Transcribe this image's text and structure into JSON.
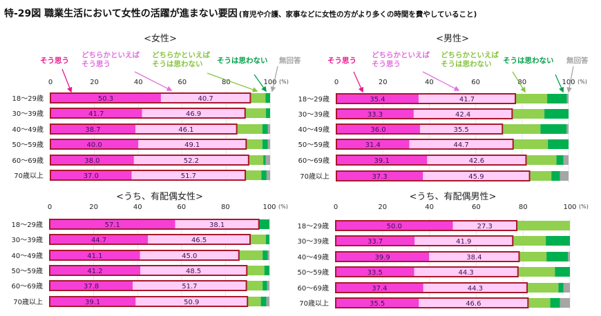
{
  "title": "特-29図 職業生活において女性の活躍が進まない要因",
  "subtitle": "(育児や介護、家事などに女性の方がより多くの時間を費やしていること)",
  "legend": [
    {
      "lines": [
        "そう思う"
      ],
      "color": "#e8168c"
    },
    {
      "lines": [
        "どちらかといえば",
        "そう思う"
      ],
      "color": "#e26fe0"
    },
    {
      "lines": [
        "どちらかといえば",
        "そうは思わない"
      ],
      "color": "#86c440"
    },
    {
      "lines": [
        "そうは思わない"
      ],
      "color": "#00a04a"
    },
    {
      "lines": [
        "無回答"
      ],
      "color": "#a6a6a6"
    }
  ],
  "segment_colors": [
    "#f53fd6",
    "#ffcdf7",
    "#92d050",
    "#00b050",
    "#a6a6a6"
  ],
  "highlight_outline_color": "#a8172b",
  "chart_data": [
    {
      "type": "bar",
      "stacked": true,
      "orientation": "horizontal",
      "title": "<女性>",
      "unit": "(%)",
      "xlim": [
        0,
        100
      ],
      "ticks": [
        0,
        20,
        40,
        60,
        80,
        100
      ],
      "categories": [
        "18～29歳",
        "30～39歳",
        "40～49歳",
        "50～59歳",
        "60～69歳",
        "70歳以上"
      ],
      "series": [
        {
          "name": "そう思う",
          "values": [
            50.3,
            41.7,
            38.7,
            40.0,
            38.0,
            37.0
          ]
        },
        {
          "name": "どちらかといえばそう思う",
          "values": [
            40.7,
            46.9,
            46.1,
            49.1,
            52.2,
            51.7
          ]
        },
        {
          "name": "どちらかといえばそうは思わない",
          "values": [
            6.9,
            9.5,
            11.7,
            7.4,
            6.7,
            7.3
          ]
        },
        {
          "name": "そうは思わない",
          "values": [
            2.1,
            1.9,
            2.5,
            2.5,
            1.1,
            2.4
          ]
        },
        {
          "name": "無回答",
          "values": [
            0.0,
            0.0,
            1.0,
            1.0,
            2.0,
            1.6
          ]
        }
      ]
    },
    {
      "type": "bar",
      "stacked": true,
      "orientation": "horizontal",
      "title": "<男性>",
      "unit": "(%)",
      "xlim": [
        0,
        100
      ],
      "ticks": [
        0,
        20,
        40,
        60,
        80,
        100
      ],
      "categories": [
        "18～29歳",
        "30～39歳",
        "40～49歳",
        "50～59歳",
        "60～69歳",
        "70歳以上"
      ],
      "series": [
        {
          "name": "そう思う",
          "values": [
            35.4,
            33.3,
            36.0,
            31.4,
            39.1,
            37.3
          ]
        },
        {
          "name": "どちらかといえばそう思う",
          "values": [
            41.7,
            42.4,
            35.5,
            44.7,
            42.6,
            45.9
          ]
        },
        {
          "name": "どちらかといえばそうは思わない",
          "values": [
            13.7,
            13.9,
            16.4,
            15.0,
            13.1,
            9.4
          ]
        },
        {
          "name": "そうは思わない",
          "values": [
            8.5,
            10.4,
            11.3,
            8.9,
            3.0,
            3.7
          ]
        },
        {
          "name": "無回答",
          "values": [
            0.7,
            0.0,
            0.8,
            0.0,
            2.2,
            3.7
          ]
        }
      ]
    },
    {
      "type": "bar",
      "stacked": true,
      "orientation": "horizontal",
      "title": "<うち、有配偶女性>",
      "unit": "(%)",
      "xlim": [
        0,
        100
      ],
      "ticks": [
        0,
        20,
        40,
        60,
        80,
        100
      ],
      "categories": [
        "18～29歳",
        "30～39歳",
        "40～49歳",
        "50～59歳",
        "60～69歳",
        "70歳以上"
      ],
      "series": [
        {
          "name": "そう思う",
          "values": [
            57.1,
            44.7,
            41.1,
            41.2,
            37.8,
            39.1
          ]
        },
        {
          "name": "どちらかといえばそう思う",
          "values": [
            38.1,
            46.5,
            45.0,
            48.5,
            51.7,
            50.9
          ]
        },
        {
          "name": "どちらかといえばそうは思わない",
          "values": [
            0.0,
            7.2,
            10.8,
            8.0,
            7.4,
            6.1
          ]
        },
        {
          "name": "そうは思わない",
          "values": [
            4.8,
            1.6,
            2.3,
            2.3,
            2.1,
            2.5
          ]
        },
        {
          "name": "無回答",
          "values": [
            0.0,
            0.0,
            0.8,
            0.0,
            1.0,
            1.4
          ]
        }
      ]
    },
    {
      "type": "bar",
      "stacked": true,
      "orientation": "horizontal",
      "title": "<うち、有配偶男性>",
      "unit": "(%)",
      "xlim": [
        0,
        100
      ],
      "ticks": [
        0,
        20,
        40,
        60,
        80,
        100
      ],
      "categories": [
        "18～29歳",
        "30～39歳",
        "40～49歳",
        "50～59歳",
        "60～69歳",
        "70歳以上"
      ],
      "series": [
        {
          "name": "そう思う",
          "values": [
            50.0,
            33.7,
            39.9,
            33.5,
            37.4,
            35.5
          ]
        },
        {
          "name": "どちらかといえばそう思う",
          "values": [
            27.3,
            41.9,
            38.4,
            44.3,
            44.3,
            46.6
          ]
        },
        {
          "name": "どちらかといえばそうは思わない",
          "values": [
            22.7,
            14.1,
            11.7,
            15.8,
            13.4,
            9.5
          ]
        },
        {
          "name": "そうは思わない",
          "values": [
            0.0,
            10.3,
            9.2,
            6.4,
            2.2,
            4.2
          ]
        },
        {
          "name": "無回答",
          "values": [
            0.0,
            0.0,
            0.8,
            0.0,
            2.7,
            4.2
          ]
        }
      ]
    }
  ]
}
